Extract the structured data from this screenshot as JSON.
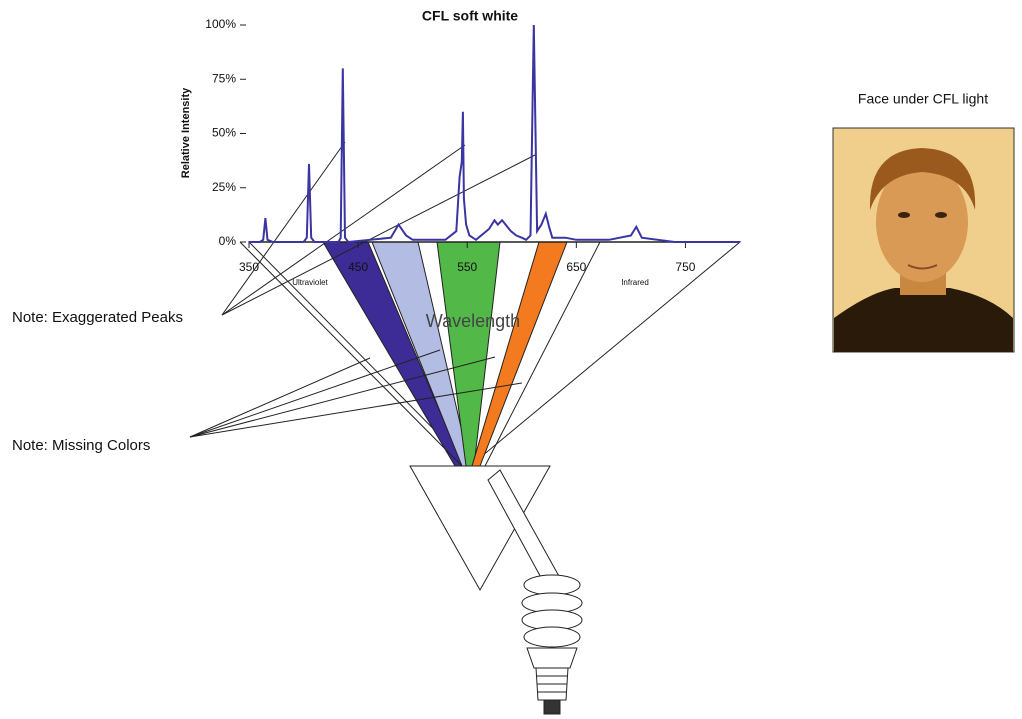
{
  "chart_data": {
    "type": "line",
    "title": "CFL soft white",
    "y_label": "Relative Intensity",
    "x_label": "Wavelength",
    "x_region_labels": [
      "Ultraviolet",
      "Infrared"
    ],
    "x": [
      350,
      360,
      363,
      365,
      367,
      372,
      400,
      403,
      405,
      407,
      410,
      432,
      434,
      436,
      438,
      441,
      480,
      487,
      494,
      500,
      530,
      540,
      543,
      545,
      546,
      547,
      549,
      552,
      558,
      570,
      575,
      578,
      582,
      590,
      595,
      600,
      604,
      608,
      611,
      614,
      618,
      622,
      625,
      628,
      640,
      650,
      680,
      700,
      705,
      710,
      740,
      800
    ],
    "values": [
      0,
      0,
      1,
      11,
      1,
      0,
      0,
      2,
      36,
      2,
      0,
      0,
      2,
      80,
      2,
      0,
      2,
      8,
      3,
      1,
      1,
      5,
      30,
      37,
      60,
      20,
      8,
      3,
      1,
      6,
      10,
      8,
      10,
      5,
      3,
      2,
      1,
      3,
      100,
      5,
      8,
      13,
      7,
      2,
      2,
      1,
      1,
      3,
      7,
      2,
      0,
      0
    ],
    "color": "#3a35a0",
    "xlim": [
      350,
      800
    ],
    "xticks": [
      350,
      450,
      550,
      650,
      750
    ],
    "ylim": [
      0,
      100
    ],
    "yticks": [
      {
        "value": 0,
        "label": "0%"
      },
      {
        "value": 25,
        "label": "25%"
      },
      {
        "value": 50,
        "label": "50%"
      },
      {
        "value": 75,
        "label": "75%"
      },
      {
        "value": 100,
        "label": "100%"
      }
    ]
  },
  "notes": [
    "Note: Exaggerated Peaks",
    "Note: Missing Colors"
  ],
  "photo_caption": "Face under CFL light"
}
